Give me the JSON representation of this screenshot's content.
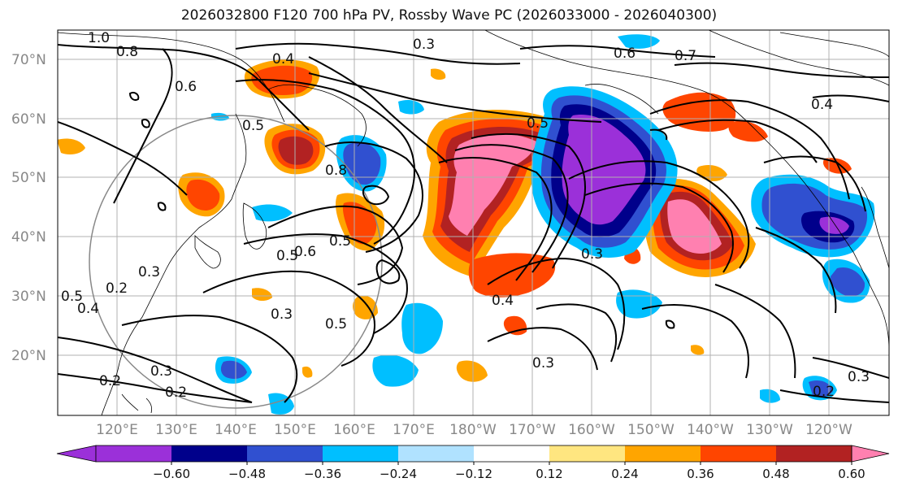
{
  "title": "2026032800 F120 700 hPa PV, Rossby Wave PC (2026033000 - 2026040300)",
  "lat_labels": [
    "70°N",
    "60°N",
    "50°N",
    "40°N",
    "30°N",
    "20°N"
  ],
  "lon_labels": [
    "120°E",
    "130°E",
    "140°E",
    "150°E",
    "160°E",
    "170°E",
    "180°W",
    "170°W",
    "160°W",
    "150°W",
    "140°W",
    "130°W",
    "120°W"
  ],
  "contour_labels": [
    "1.0",
    "0.8",
    "0.6",
    "0.4",
    "0.3",
    "0.6",
    "0.7",
    "0.4",
    "0.5",
    "0.5",
    "0.8",
    "0.5",
    "0.6",
    "0.5",
    "0.3",
    "0.2",
    "0.5",
    "0.4",
    "0.3",
    "0.5",
    "0.4",
    "0.3",
    "0.3",
    "0.2",
    "0.2",
    "0.3",
    "0.2",
    "0.3"
  ],
  "colorbar": {
    "ticks": [
      "−0.60",
      "−0.48",
      "−0.36",
      "−0.24",
      "−0.12",
      "0.12",
      "0.24",
      "0.36",
      "0.48",
      "0.60"
    ],
    "colors": [
      "#9b30d9",
      "#00008b",
      "#3050d0",
      "#00bfff",
      "#b0e2ff",
      "#ffffff",
      "#ffe680",
      "#ffa500",
      "#ff4500",
      "#b22222",
      "#ff80b0",
      "#ff80b0"
    ]
  },
  "shading_colors": {
    "pink": "#ff80b0",
    "darkred": "#b22222",
    "red": "#ff4500",
    "orange": "#ffa500",
    "yellow": "#ffe680",
    "purple": "#9b30d9",
    "navy": "#00008b",
    "blue": "#3050d0",
    "cyan": "#00bfff",
    "lightblue": "#b0e2ff"
  }
}
